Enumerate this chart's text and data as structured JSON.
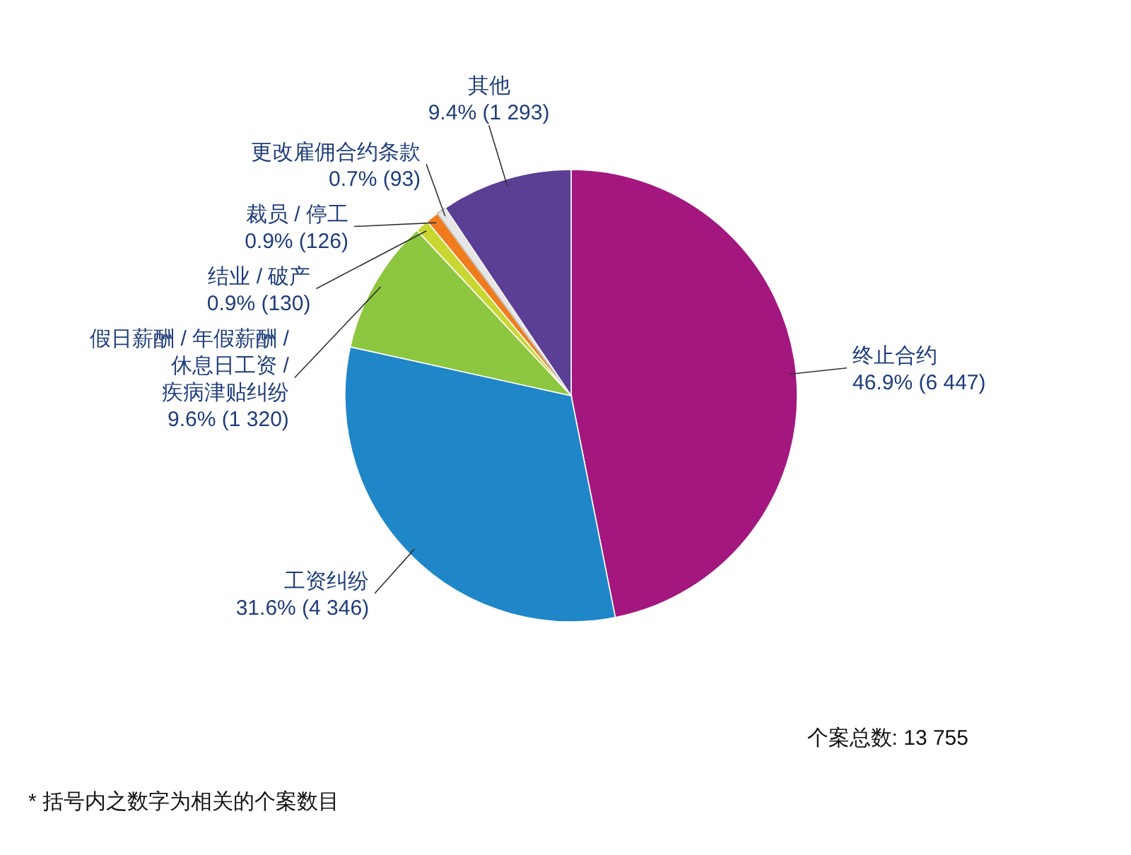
{
  "chart_data": {
    "type": "pie",
    "categories": [
      "终止合约",
      "工资纠纷",
      "假日薪酬 / 年假薪酬 /\n休息日工资 /\n疾病津贴纠纷",
      "结业 / 破产",
      "裁员 / 停工",
      "更改雇佣合约条款",
      "其他"
    ],
    "values": [
      6447,
      4346,
      1320,
      130,
      126,
      93,
      1293
    ],
    "colors": [
      "#a3177f",
      "#1f86c8",
      "#8dc63f",
      "#c9d731",
      "#f07c1e",
      "#e6e6e6",
      "#5a3f95"
    ],
    "value_labels": [
      "46.9% (6 447)",
      "31.6% (4 346)",
      "9.6% (1 320)",
      "0.9% (130)",
      "0.9% (126)",
      "0.7% (93)",
      "9.4% (1 293)"
    ],
    "annotations": [
      "个案总数: 13 755",
      "* 括号内之数字为相关的个案数目"
    ]
  }
}
